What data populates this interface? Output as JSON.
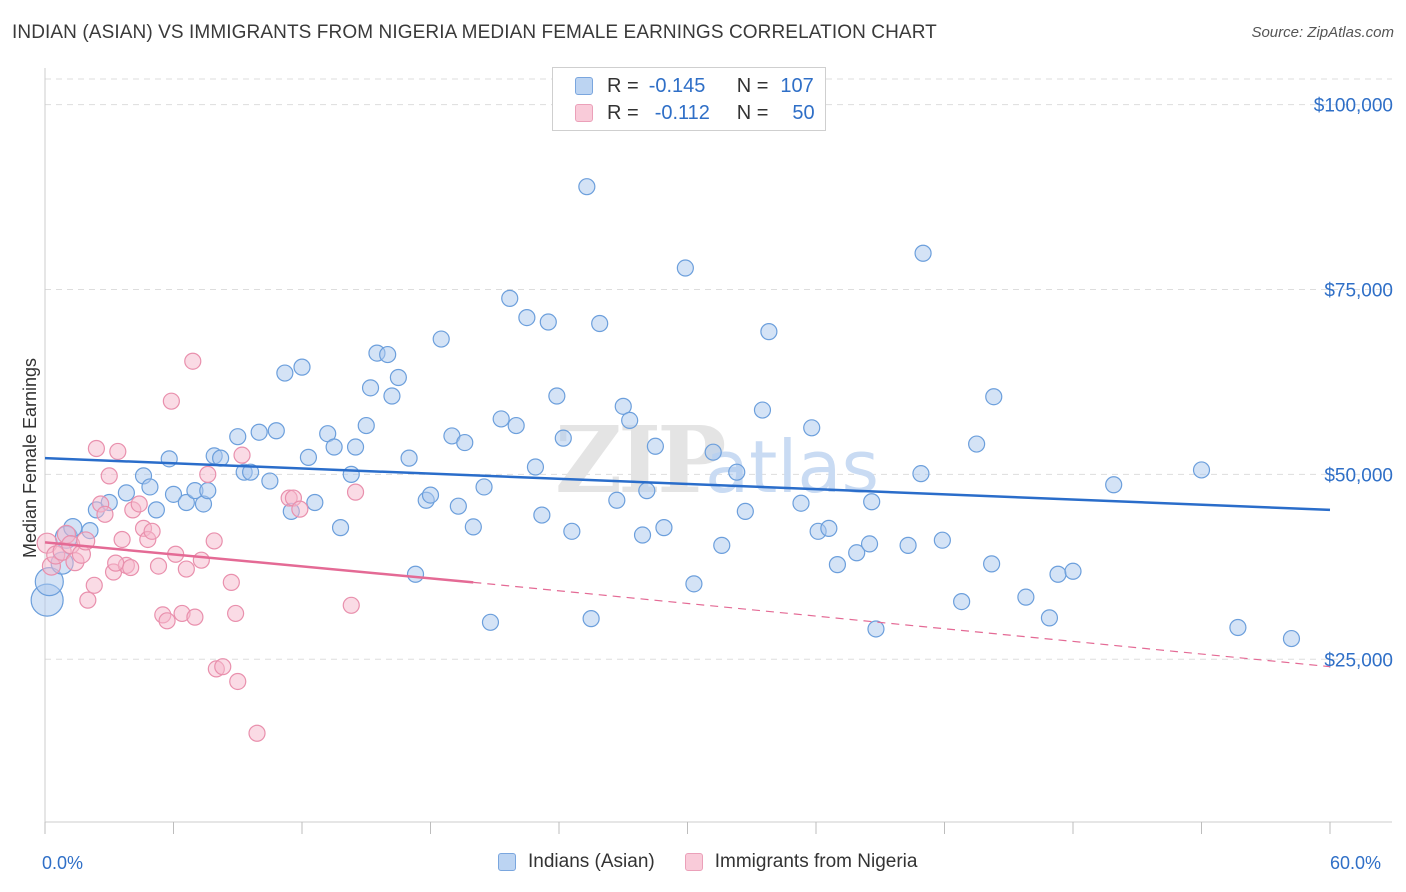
{
  "title": "INDIAN (ASIAN) VS IMMIGRANTS FROM NIGERIA MEDIAN FEMALE EARNINGS CORRELATION CHART",
  "source": "Source: ZipAtlas.com",
  "watermark": "ZIPatlas",
  "legend_top": {
    "rows": [
      {
        "r_label": "R =",
        "r_value": "-0.145",
        "n_label": "N =",
        "n_value": "107"
      },
      {
        "r_label": "R =",
        "r_value": "-0.112",
        "n_label": "N =",
        "n_value": "50"
      }
    ]
  },
  "colors": {
    "blue_fill": "#a9c8ee",
    "blue_stroke": "#6c9fdc",
    "blue_line": "#2a6dca",
    "pink_fill": "#f6b7cb",
    "pink_stroke": "#e990ad",
    "pink_line": "#e46a95",
    "axis_text": "#2f6fc7",
    "grid": "#dddddd"
  },
  "chart_data": {
    "type": "scatter",
    "title": "INDIAN (ASIAN) VS IMMIGRANTS FROM NIGERIA MEDIAN FEMALE EARNINGS CORRELATION CHART",
    "xlabel": "",
    "ylabel": "Median Female Earnings",
    "xlim": [
      0,
      60
    ],
    "ylim": [
      3000,
      104000
    ],
    "x_tick_labels": [
      "0.0%",
      "60.0%"
    ],
    "y_ticks": [
      25000,
      50000,
      75000,
      100000
    ],
    "y_tick_labels": [
      "$25,000",
      "$50,000",
      "$75,000",
      "$100,000"
    ],
    "legend_position": "bottom",
    "grid": true,
    "series": [
      {
        "name": "Indians (Asian)",
        "color": "#a9c8ee",
        "trend": {
          "x0": 0,
          "y0": 52200,
          "x1": 60,
          "y1": 45200,
          "dashed_to": 60
        },
        "points": [
          [
            0.1,
            33000,
            16
          ],
          [
            0.2,
            35500,
            14
          ],
          [
            0.8,
            38000,
            11
          ],
          [
            1.0,
            41500,
            11
          ],
          [
            1.3,
            42800,
            9
          ],
          [
            2.1,
            42400,
            8
          ],
          [
            2.4,
            45200,
            8
          ],
          [
            3.0,
            46200,
            8
          ],
          [
            3.8,
            47500,
            8
          ],
          [
            4.6,
            49800,
            8
          ],
          [
            4.9,
            48300,
            8
          ],
          [
            5.2,
            45200,
            8
          ],
          [
            5.8,
            52100,
            8
          ],
          [
            6.0,
            47300,
            8
          ],
          [
            6.6,
            46200,
            8
          ],
          [
            7.0,
            47800,
            8
          ],
          [
            7.4,
            46000,
            8
          ],
          [
            7.6,
            47800,
            8
          ],
          [
            7.9,
            52500,
            8
          ],
          [
            8.2,
            52200,
            8
          ],
          [
            9.0,
            55100,
            8
          ],
          [
            9.3,
            50300,
            8
          ],
          [
            9.6,
            50300,
            8
          ],
          [
            10.0,
            55700,
            8
          ],
          [
            10.5,
            49100,
            8
          ],
          [
            10.8,
            55900,
            8
          ],
          [
            11.2,
            63700,
            8
          ],
          [
            11.5,
            45000,
            8
          ],
          [
            12.0,
            64500,
            8
          ],
          [
            12.3,
            52300,
            8
          ],
          [
            12.6,
            46200,
            8
          ],
          [
            13.2,
            55500,
            8
          ],
          [
            13.5,
            53700,
            8
          ],
          [
            13.8,
            42800,
            8
          ],
          [
            14.3,
            50000,
            8
          ],
          [
            14.5,
            53700,
            8
          ],
          [
            15.0,
            56600,
            8
          ],
          [
            15.2,
            61700,
            8
          ],
          [
            15.5,
            66400,
            8
          ],
          [
            16.0,
            66200,
            8
          ],
          [
            16.2,
            60600,
            8
          ],
          [
            16.5,
            63100,
            8
          ],
          [
            17.0,
            52200,
            8
          ],
          [
            17.3,
            36500,
            8
          ],
          [
            17.8,
            46500,
            8
          ],
          [
            18.0,
            47200,
            8
          ],
          [
            18.5,
            68300,
            8
          ],
          [
            19.0,
            55200,
            8
          ],
          [
            19.3,
            45700,
            8
          ],
          [
            19.6,
            54300,
            8
          ],
          [
            20.0,
            42900,
            8
          ],
          [
            20.5,
            48300,
            8
          ],
          [
            20.8,
            30000,
            8
          ],
          [
            21.3,
            57500,
            8
          ],
          [
            21.7,
            73800,
            8
          ],
          [
            22.0,
            56600,
            8
          ],
          [
            22.5,
            71200,
            8
          ],
          [
            22.9,
            51000,
            8
          ],
          [
            23.2,
            44500,
            8
          ],
          [
            23.5,
            70600,
            8
          ],
          [
            23.9,
            60600,
            8
          ],
          [
            24.2,
            54900,
            8
          ],
          [
            24.6,
            42300,
            8
          ],
          [
            25.3,
            88900,
            8
          ],
          [
            25.5,
            30500,
            8
          ],
          [
            25.9,
            70400,
            8
          ],
          [
            26.7,
            46500,
            8
          ],
          [
            27.0,
            59200,
            8
          ],
          [
            27.3,
            57300,
            8
          ],
          [
            27.9,
            41800,
            8
          ],
          [
            28.1,
            47800,
            8
          ],
          [
            28.5,
            53800,
            8
          ],
          [
            28.9,
            42800,
            8
          ],
          [
            29.9,
            77900,
            8
          ],
          [
            30.3,
            35200,
            8
          ],
          [
            31.2,
            53000,
            8
          ],
          [
            31.6,
            40400,
            8
          ],
          [
            32.3,
            50300,
            8
          ],
          [
            32.7,
            45000,
            8
          ],
          [
            33.5,
            58700,
            8
          ],
          [
            33.8,
            69300,
            8
          ],
          [
            35.3,
            46100,
            8
          ],
          [
            35.8,
            56300,
            8
          ],
          [
            36.1,
            42300,
            8
          ],
          [
            36.6,
            42700,
            8
          ],
          [
            37.0,
            37800,
            8
          ],
          [
            37.9,
            39400,
            8
          ],
          [
            38.5,
            40600,
            8
          ],
          [
            38.8,
            29100,
            8
          ],
          [
            38.6,
            46300,
            8
          ],
          [
            40.3,
            40400,
            8
          ],
          [
            40.9,
            50100,
            8
          ],
          [
            41.0,
            79900,
            8
          ],
          [
            41.9,
            41100,
            8
          ],
          [
            42.8,
            32800,
            8
          ],
          [
            43.5,
            54100,
            8
          ],
          [
            44.2,
            37900,
            8
          ],
          [
            44.3,
            60500,
            8
          ],
          [
            45.8,
            33400,
            8
          ],
          [
            46.9,
            30600,
            8
          ],
          [
            47.3,
            36500,
            8
          ],
          [
            48.0,
            36900,
            8
          ],
          [
            49.9,
            48600,
            8
          ],
          [
            54.0,
            50600,
            8
          ],
          [
            55.7,
            29300,
            8
          ],
          [
            58.2,
            27800,
            8
          ]
        ]
      },
      {
        "name": "Immigrants from Nigeria",
        "color": "#f6b7cb",
        "trend": {
          "x0": 0,
          "y0": 40800,
          "x1": 20,
          "y1": 35400,
          "dashed_to": 60,
          "dashed_y1": 24000
        },
        "points": [
          [
            0.1,
            40700,
            10
          ],
          [
            0.3,
            37600,
            9
          ],
          [
            0.5,
            39100,
            9
          ],
          [
            0.8,
            39600,
            9
          ],
          [
            1.0,
            41900,
            9
          ],
          [
            1.2,
            40500,
            9
          ],
          [
            1.4,
            38200,
            9
          ],
          [
            1.7,
            39200,
            9
          ],
          [
            1.9,
            41000,
            9
          ],
          [
            2.0,
            33000,
            8
          ],
          [
            2.3,
            35000,
            8
          ],
          [
            2.4,
            53500,
            8
          ],
          [
            2.6,
            46000,
            8
          ],
          [
            2.8,
            44600,
            8
          ],
          [
            3.0,
            49800,
            8
          ],
          [
            3.2,
            36800,
            8
          ],
          [
            3.4,
            53100,
            8
          ],
          [
            3.6,
            41200,
            8
          ],
          [
            3.8,
            37700,
            8
          ],
          [
            4.0,
            37400,
            8
          ],
          [
            4.1,
            45200,
            8
          ],
          [
            4.4,
            46000,
            8
          ],
          [
            4.6,
            42700,
            8
          ],
          [
            4.8,
            41200,
            8
          ],
          [
            5.0,
            42300,
            8
          ],
          [
            5.3,
            37600,
            8
          ],
          [
            5.5,
            31000,
            8
          ],
          [
            5.7,
            30200,
            8
          ],
          [
            5.9,
            59900,
            8
          ],
          [
            6.1,
            39200,
            8
          ],
          [
            6.4,
            31200,
            8
          ],
          [
            6.6,
            37200,
            8
          ],
          [
            6.9,
            65300,
            8
          ],
          [
            7.0,
            30700,
            8
          ],
          [
            7.3,
            38400,
            8
          ],
          [
            7.6,
            50000,
            8
          ],
          [
            7.9,
            41000,
            8
          ],
          [
            8.0,
            23700,
            8
          ],
          [
            8.3,
            24000,
            8
          ],
          [
            8.7,
            35400,
            8
          ],
          [
            8.9,
            31200,
            8
          ],
          [
            9.0,
            22000,
            8
          ],
          [
            9.2,
            52600,
            8
          ],
          [
            9.9,
            15000,
            8
          ],
          [
            11.4,
            46800,
            8
          ],
          [
            11.6,
            46800,
            8
          ],
          [
            11.9,
            45300,
            8
          ],
          [
            14.3,
            32300,
            8
          ],
          [
            14.5,
            47600,
            8
          ],
          [
            3.3,
            38000,
            8
          ]
        ]
      }
    ]
  },
  "bottom_legend": [
    {
      "label": "Indians (Asian)"
    },
    {
      "label": "Immigrants from Nigeria"
    }
  ]
}
